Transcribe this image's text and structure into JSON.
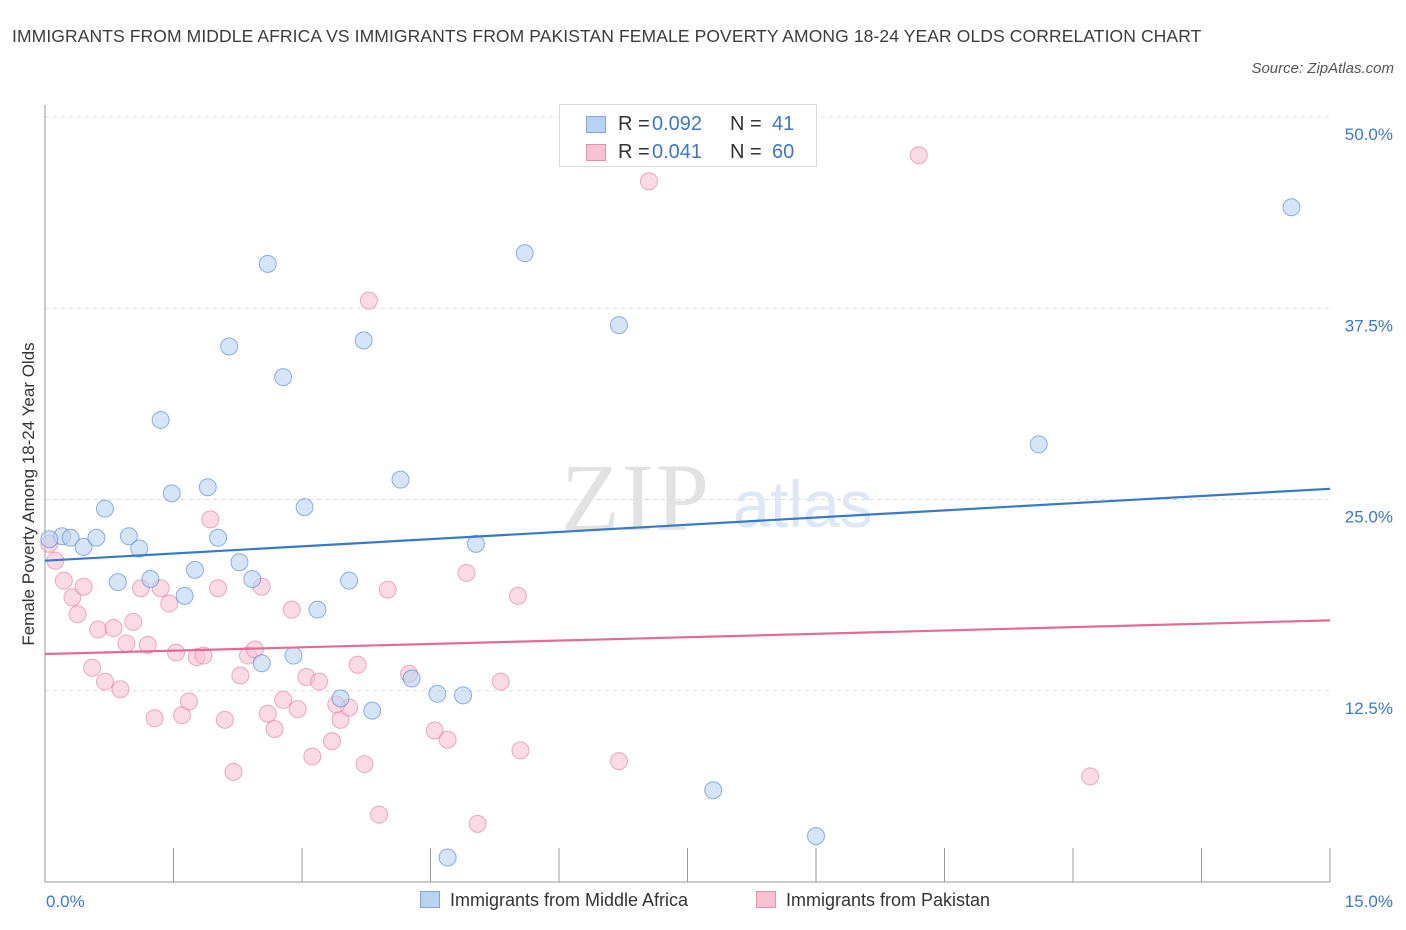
{
  "title": "IMMIGRANTS FROM MIDDLE AFRICA VS IMMIGRANTS FROM PAKISTAN FEMALE POVERTY AMONG 18-24 YEAR OLDS CORRELATION CHART",
  "source": "Source: ZipAtlas.com",
  "watermark": {
    "zip": "ZIP",
    "atlas": "atlas"
  },
  "legend": {
    "rows": [
      {
        "r_label": "R =",
        "r_value": "0.092",
        "n_label": "N =",
        "n_value": "41",
        "fill": "#b9d2f2",
        "stroke": "#7fa6db"
      },
      {
        "r_label": "R =",
        "r_value": "0.041",
        "n_label": "N =",
        "n_value": "60",
        "fill": "#f7c3d3",
        "stroke": "#e890ac"
      }
    ]
  },
  "bottom_legend": [
    {
      "label": "Immigrants from Middle Africa",
      "fill": "#b9d2f2",
      "stroke": "#7fa6db"
    },
    {
      "label": "Immigrants from Pakistan",
      "fill": "#f7c3d3",
      "stroke": "#e890ac"
    }
  ],
  "chart_data": {
    "type": "scatter",
    "title": "IMMIGRANTS FROM MIDDLE AFRICA VS IMMIGRANTS FROM PAKISTAN FEMALE POVERTY AMONG 18-24 YEAR OLDS CORRELATION CHART",
    "xlabel": "",
    "ylabel": "Female Poverty Among 18-24 Year Olds",
    "xlim": [
      0,
      15
    ],
    "ylim": [
      0,
      50
    ],
    "x_tick_labels": [
      "0.0%",
      "15.0%"
    ],
    "y_tick_labels": [
      "12.5%",
      "25.0%",
      "37.5%",
      "50.0%"
    ],
    "y_ticks": [
      12.5,
      25,
      37.5,
      50
    ],
    "grid": true,
    "legend_position": "top-center",
    "series": [
      {
        "name": "Immigrants from Middle Africa",
        "color": "#3a78c9",
        "fill": "#b9d2f2",
        "trend": {
          "x": [
            0,
            15
          ],
          "y": [
            21.0,
            25.7
          ]
        },
        "points": [
          {
            "x": 0.2,
            "y": 22.6
          },
          {
            "x": 0.3,
            "y": 22.5
          },
          {
            "x": 0.45,
            "y": 21.9
          },
          {
            "x": 0.6,
            "y": 22.5
          },
          {
            "x": 0.7,
            "y": 24.4
          },
          {
            "x": 0.85,
            "y": 19.6
          },
          {
            "x": 0.98,
            "y": 22.6
          },
          {
            "x": 1.1,
            "y": 21.8
          },
          {
            "x": 1.23,
            "y": 19.8
          },
          {
            "x": 1.35,
            "y": 30.2
          },
          {
            "x": 1.48,
            "y": 25.4
          },
          {
            "x": 1.63,
            "y": 18.7
          },
          {
            "x": 1.75,
            "y": 20.4
          },
          {
            "x": 1.9,
            "y": 25.8
          },
          {
            "x": 2.02,
            "y": 22.5
          },
          {
            "x": 2.15,
            "y": 35.0
          },
          {
            "x": 2.27,
            "y": 20.9
          },
          {
            "x": 2.42,
            "y": 19.8
          },
          {
            "x": 2.53,
            "y": 14.3
          },
          {
            "x": 2.6,
            "y": 40.4
          },
          {
            "x": 2.78,
            "y": 33.0
          },
          {
            "x": 2.9,
            "y": 14.8
          },
          {
            "x": 3.03,
            "y": 24.5
          },
          {
            "x": 3.18,
            "y": 17.8
          },
          {
            "x": 3.45,
            "y": 12.0
          },
          {
            "x": 3.55,
            "y": 19.7
          },
          {
            "x": 3.72,
            "y": 35.4
          },
          {
            "x": 3.82,
            "y": 11.2
          },
          {
            "x": 4.15,
            "y": 26.3
          },
          {
            "x": 4.28,
            "y": 13.3
          },
          {
            "x": 4.58,
            "y": 12.3
          },
          {
            "x": 4.7,
            "y": 1.6
          },
          {
            "x": 4.88,
            "y": 12.2
          },
          {
            "x": 5.03,
            "y": 22.1
          },
          {
            "x": 5.6,
            "y": 41.1
          },
          {
            "x": 6.7,
            "y": 36.4
          },
          {
            "x": 7.8,
            "y": 6.0
          },
          {
            "x": 9.0,
            "y": 3.0
          },
          {
            "x": 11.6,
            "y": 28.6
          },
          {
            "x": 14.55,
            "y": 44.1
          },
          {
            "x": 0.05,
            "y": 22.4
          }
        ]
      },
      {
        "name": "Immigrants from Pakistan",
        "color": "#e06c97",
        "fill": "#f7c3d3",
        "trend": {
          "x": [
            0,
            15
          ],
          "y": [
            14.9,
            17.1
          ]
        },
        "points": [
          {
            "x": 0.05,
            "y": 22.1
          },
          {
            "x": 0.12,
            "y": 21.0
          },
          {
            "x": 0.22,
            "y": 19.7
          },
          {
            "x": 0.32,
            "y": 18.6
          },
          {
            "x": 0.38,
            "y": 17.5
          },
          {
            "x": 0.45,
            "y": 19.3
          },
          {
            "x": 0.55,
            "y": 14.0
          },
          {
            "x": 0.62,
            "y": 16.5
          },
          {
            "x": 0.7,
            "y": 13.1
          },
          {
            "x": 0.8,
            "y": 16.6
          },
          {
            "x": 0.88,
            "y": 12.6
          },
          {
            "x": 0.95,
            "y": 15.6
          },
          {
            "x": 1.03,
            "y": 17.0
          },
          {
            "x": 1.12,
            "y": 19.2
          },
          {
            "x": 1.2,
            "y": 15.5
          },
          {
            "x": 1.28,
            "y": 10.7
          },
          {
            "x": 1.35,
            "y": 19.2
          },
          {
            "x": 1.45,
            "y": 18.2
          },
          {
            "x": 1.53,
            "y": 15.0
          },
          {
            "x": 1.6,
            "y": 10.9
          },
          {
            "x": 1.68,
            "y": 11.8
          },
          {
            "x": 1.77,
            "y": 14.7
          },
          {
            "x": 1.85,
            "y": 14.8
          },
          {
            "x": 1.93,
            "y": 23.7
          },
          {
            "x": 2.02,
            "y": 19.2
          },
          {
            "x": 2.1,
            "y": 10.6
          },
          {
            "x": 2.2,
            "y": 7.2
          },
          {
            "x": 2.28,
            "y": 13.5
          },
          {
            "x": 2.37,
            "y": 14.8
          },
          {
            "x": 2.45,
            "y": 15.2
          },
          {
            "x": 2.53,
            "y": 19.3
          },
          {
            "x": 2.6,
            "y": 11.0
          },
          {
            "x": 2.68,
            "y": 10.0
          },
          {
            "x": 2.78,
            "y": 11.9
          },
          {
            "x": 2.88,
            "y": 17.8
          },
          {
            "x": 2.95,
            "y": 11.3
          },
          {
            "x": 3.05,
            "y": 13.4
          },
          {
            "x": 3.12,
            "y": 8.2
          },
          {
            "x": 3.2,
            "y": 13.1
          },
          {
            "x": 3.35,
            "y": 9.2
          },
          {
            "x": 3.45,
            "y": 10.6
          },
          {
            "x": 3.55,
            "y": 11.4
          },
          {
            "x": 3.65,
            "y": 14.2
          },
          {
            "x": 3.73,
            "y": 7.7
          },
          {
            "x": 3.78,
            "y": 38.0
          },
          {
            "x": 3.9,
            "y": 4.4
          },
          {
            "x": 4.0,
            "y": 19.1
          },
          {
            "x": 4.25,
            "y": 13.6
          },
          {
            "x": 4.55,
            "y": 9.9
          },
          {
            "x": 4.7,
            "y": 9.3
          },
          {
            "x": 4.92,
            "y": 20.2
          },
          {
            "x": 5.05,
            "y": 3.8
          },
          {
            "x": 5.32,
            "y": 13.1
          },
          {
            "x": 5.55,
            "y": 8.6
          },
          {
            "x": 5.52,
            "y": 18.7
          },
          {
            "x": 6.7,
            "y": 7.9
          },
          {
            "x": 7.05,
            "y": 45.8
          },
          {
            "x": 10.2,
            "y": 47.5
          },
          {
            "x": 12.2,
            "y": 6.9
          },
          {
            "x": 3.4,
            "y": 11.6
          }
        ]
      }
    ]
  }
}
